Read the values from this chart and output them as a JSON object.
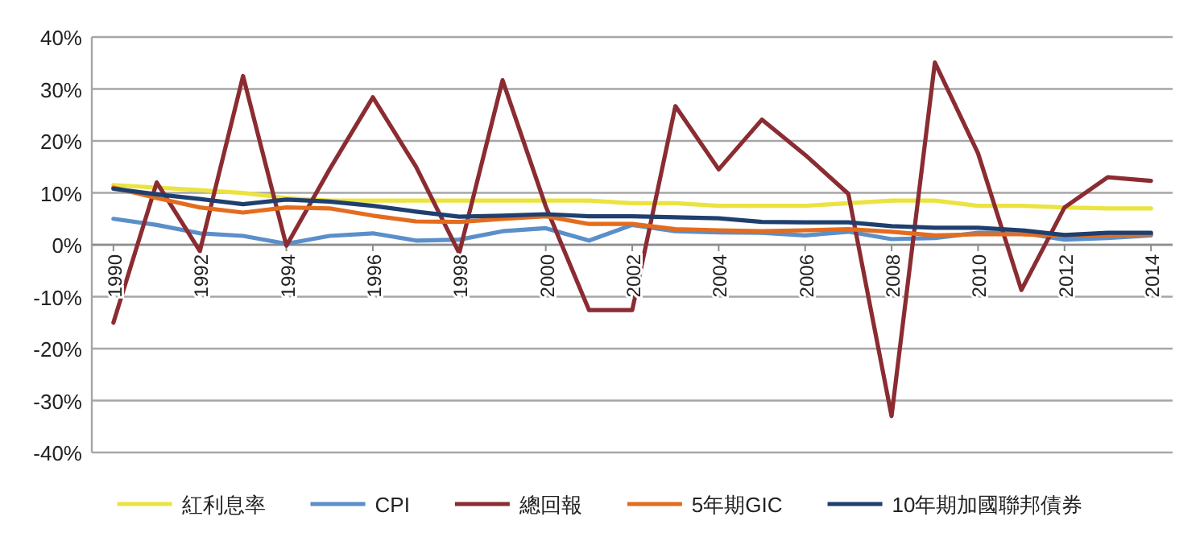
{
  "chart_data": {
    "type": "line",
    "x": [
      1990,
      1991,
      1992,
      1993,
      1994,
      1995,
      1996,
      1997,
      1998,
      1999,
      2000,
      2001,
      2002,
      2003,
      2004,
      2005,
      2006,
      2007,
      2008,
      2009,
      2010,
      2011,
      2012,
      2013,
      2014
    ],
    "series": [
      {
        "name": "紅利息率",
        "color": "#ebe33f",
        "values": [
          11.5,
          11,
          10.5,
          10,
          9,
          8.5,
          8.5,
          8.5,
          8.5,
          8.5,
          8.5,
          8.5,
          8,
          8,
          7.5,
          7.5,
          7.5,
          8,
          8.5,
          8.5,
          7.5,
          7.5,
          7.2,
          7,
          7
        ]
      },
      {
        "name": "CPI",
        "color": "#5b8fc9",
        "values": [
          5,
          3.8,
          2.2,
          1.7,
          0.2,
          1.7,
          2.2,
          0.8,
          1,
          2.6,
          3.2,
          0.8,
          3.8,
          2.6,
          2.4,
          2.3,
          1.8,
          2.5,
          1.1,
          1.3,
          2.3,
          2.3,
          1,
          1.3,
          1.8
        ]
      },
      {
        "name": "總回報",
        "color": "#8b2c32",
        "values": [
          -15,
          12,
          -1.2,
          32.5,
          -0.2,
          14.5,
          28.4,
          15,
          -1.6,
          31.7,
          7.4,
          -12.6,
          -12.6,
          26.7,
          14.5,
          24.1,
          17.3,
          9.8,
          -33,
          35.1,
          17.6,
          -8.7,
          7.2,
          13,
          12.3
        ]
      },
      {
        "name": "5年期GIC",
        "color": "#e46c1e",
        "values": [
          11,
          9,
          7.2,
          6.2,
          7.2,
          7,
          5.6,
          4.5,
          4.4,
          5,
          5.5,
          4,
          4,
          3,
          2.8,
          2.6,
          2.8,
          3,
          2.5,
          1.8,
          2,
          2,
          1.8,
          1.8,
          2
        ]
      },
      {
        "name": "10年期加國聯邦債券",
        "color": "#1f3f6e",
        "values": [
          10.8,
          9.7,
          8.8,
          7.8,
          8.7,
          8.3,
          7.5,
          6.4,
          5.4,
          5.6,
          5.9,
          5.5,
          5.5,
          5.3,
          5.1,
          4.4,
          4.3,
          4.3,
          3.6,
          3.3,
          3.3,
          2.8,
          1.9,
          2.3,
          2.3
        ]
      }
    ],
    "xlim": [
      1989.5,
      2014.5
    ],
    "xticks": [
      1990,
      1992,
      1994,
      1996,
      1998,
      2000,
      2002,
      2004,
      2006,
      2008,
      2010,
      2012,
      2014
    ],
    "ylim": [
      -40,
      40
    ],
    "yticks": [
      {
        "value": -40,
        "label": "-40%"
      },
      {
        "value": -30,
        "label": "-30%"
      },
      {
        "value": -20,
        "label": "-20%"
      },
      {
        "value": -10,
        "label": "-10%"
      },
      {
        "value": 0,
        "label": "0%"
      },
      {
        "value": 10,
        "label": "10%"
      },
      {
        "value": 20,
        "label": "20%"
      },
      {
        "value": 30,
        "label": "30%"
      },
      {
        "value": 40,
        "label": "40%"
      }
    ],
    "grid": "y",
    "legend": "bottom",
    "marker": "none",
    "line_style": "solid"
  }
}
